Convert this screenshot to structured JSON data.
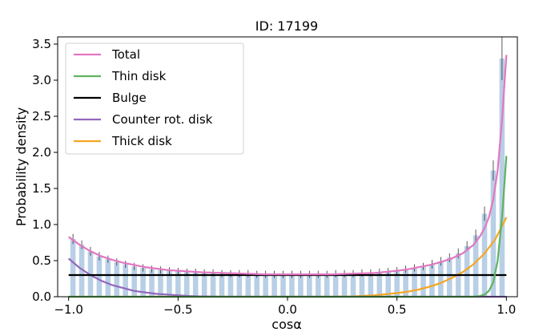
{
  "chart_data": {
    "type": "bar",
    "title": "ID: 17199",
    "xlabel": "cosα",
    "ylabel": "Probability density",
    "xlim": [
      -1.05,
      1.05
    ],
    "ylim": [
      0,
      3.6
    ],
    "xticks": [
      -1.0,
      -0.5,
      0.0,
      0.5,
      1.0
    ],
    "xtick_labels": [
      "−1.0",
      "−0.5",
      "0.0",
      "0.5",
      "1.0"
    ],
    "yticks": [
      0,
      0.5,
      1.0,
      1.5,
      2.0,
      2.5,
      3.0,
      3.5
    ],
    "ytick_labels": [
      "0.0",
      "0.5",
      "1.0",
      "1.5",
      "2.0",
      "2.5",
      "3.0",
      "3.5"
    ],
    "legend_position": "top-left",
    "histogram": {
      "color": "#b8cfe6",
      "bin_centers": [
        -0.98,
        -0.94,
        -0.9,
        -0.86,
        -0.82,
        -0.78,
        -0.74,
        -0.7,
        -0.66,
        -0.62,
        -0.58,
        -0.54,
        -0.5,
        -0.46,
        -0.42,
        -0.38,
        -0.34,
        -0.3,
        -0.26,
        -0.22,
        -0.18,
        -0.14,
        -0.1,
        -0.06,
        -0.02,
        0.02,
        0.06,
        0.1,
        0.14,
        0.18,
        0.22,
        0.26,
        0.3,
        0.34,
        0.38,
        0.42,
        0.46,
        0.5,
        0.54,
        0.58,
        0.62,
        0.66,
        0.7,
        0.74,
        0.78,
        0.82,
        0.86,
        0.9,
        0.94,
        0.98
      ],
      "bin_width": 0.04,
      "values": [
        0.8,
        0.72,
        0.63,
        0.56,
        0.52,
        0.48,
        0.45,
        0.42,
        0.4,
        0.38,
        0.37,
        0.36,
        0.35,
        0.34,
        0.34,
        0.33,
        0.33,
        0.32,
        0.32,
        0.32,
        0.32,
        0.31,
        0.31,
        0.31,
        0.31,
        0.31,
        0.31,
        0.31,
        0.31,
        0.31,
        0.32,
        0.32,
        0.32,
        0.33,
        0.33,
        0.34,
        0.35,
        0.36,
        0.38,
        0.4,
        0.42,
        0.45,
        0.49,
        0.54,
        0.6,
        0.7,
        0.85,
        1.15,
        1.75,
        3.3
      ],
      "errors": [
        0.07,
        0.06,
        0.06,
        0.06,
        0.05,
        0.05,
        0.05,
        0.05,
        0.05,
        0.05,
        0.05,
        0.05,
        0.05,
        0.05,
        0.05,
        0.05,
        0.05,
        0.05,
        0.05,
        0.05,
        0.05,
        0.05,
        0.05,
        0.05,
        0.05,
        0.05,
        0.05,
        0.05,
        0.05,
        0.05,
        0.05,
        0.05,
        0.05,
        0.05,
        0.05,
        0.05,
        0.05,
        0.05,
        0.05,
        0.05,
        0.05,
        0.06,
        0.06,
        0.06,
        0.07,
        0.07,
        0.08,
        0.1,
        0.14,
        0.3
      ]
    },
    "series": [
      {
        "name": "Total",
        "color": "#e377c2",
        "x": [
          -1.0,
          -0.95,
          -0.9,
          -0.85,
          -0.8,
          -0.75,
          -0.7,
          -0.65,
          -0.6,
          -0.55,
          -0.5,
          -0.4,
          -0.3,
          -0.2,
          -0.1,
          0.0,
          0.1,
          0.2,
          0.3,
          0.4,
          0.5,
          0.55,
          0.6,
          0.65,
          0.7,
          0.75,
          0.8,
          0.85,
          0.88,
          0.9,
          0.92,
          0.94,
          0.96,
          0.98,
          1.0
        ],
        "y": [
          0.83,
          0.72,
          0.63,
          0.56,
          0.51,
          0.47,
          0.44,
          0.41,
          0.39,
          0.37,
          0.36,
          0.34,
          0.33,
          0.32,
          0.31,
          0.31,
          0.31,
          0.31,
          0.32,
          0.33,
          0.36,
          0.38,
          0.41,
          0.44,
          0.48,
          0.53,
          0.6,
          0.72,
          0.84,
          0.95,
          1.1,
          1.35,
          1.75,
          2.45,
          3.35
        ]
      },
      {
        "name": "Thin disk",
        "color": "#5fb35f",
        "x": [
          -1.0,
          0.8,
          0.85,
          0.88,
          0.9,
          0.92,
          0.94,
          0.96,
          0.98,
          1.0
        ],
        "y": [
          0.0,
          0.0,
          0.0,
          0.01,
          0.03,
          0.08,
          0.2,
          0.5,
          1.1,
          1.95
        ]
      },
      {
        "name": "Bulge",
        "color": "#000000",
        "x": [
          -1.0,
          1.0
        ],
        "y": [
          0.3,
          0.3
        ]
      },
      {
        "name": "Counter rot. disk",
        "color": "#9467bd",
        "x": [
          -1.0,
          -0.95,
          -0.9,
          -0.85,
          -0.8,
          -0.75,
          -0.7,
          -0.65,
          -0.6,
          -0.55,
          -0.5,
          -0.45,
          -0.4,
          -0.3,
          -0.2,
          1.0
        ],
        "y": [
          0.53,
          0.4,
          0.3,
          0.22,
          0.16,
          0.12,
          0.08,
          0.06,
          0.04,
          0.03,
          0.02,
          0.01,
          0.005,
          0.0,
          0.0,
          0.0
        ]
      },
      {
        "name": "Thick disk",
        "color": "#f5a623",
        "x": [
          -1.0,
          0.2,
          0.3,
          0.4,
          0.5,
          0.55,
          0.6,
          0.65,
          0.7,
          0.75,
          0.8,
          0.85,
          0.9,
          0.95,
          1.0
        ],
        "y": [
          0.0,
          0.0,
          0.005,
          0.02,
          0.05,
          0.07,
          0.1,
          0.14,
          0.19,
          0.26,
          0.34,
          0.45,
          0.6,
          0.8,
          1.1
        ]
      }
    ]
  }
}
